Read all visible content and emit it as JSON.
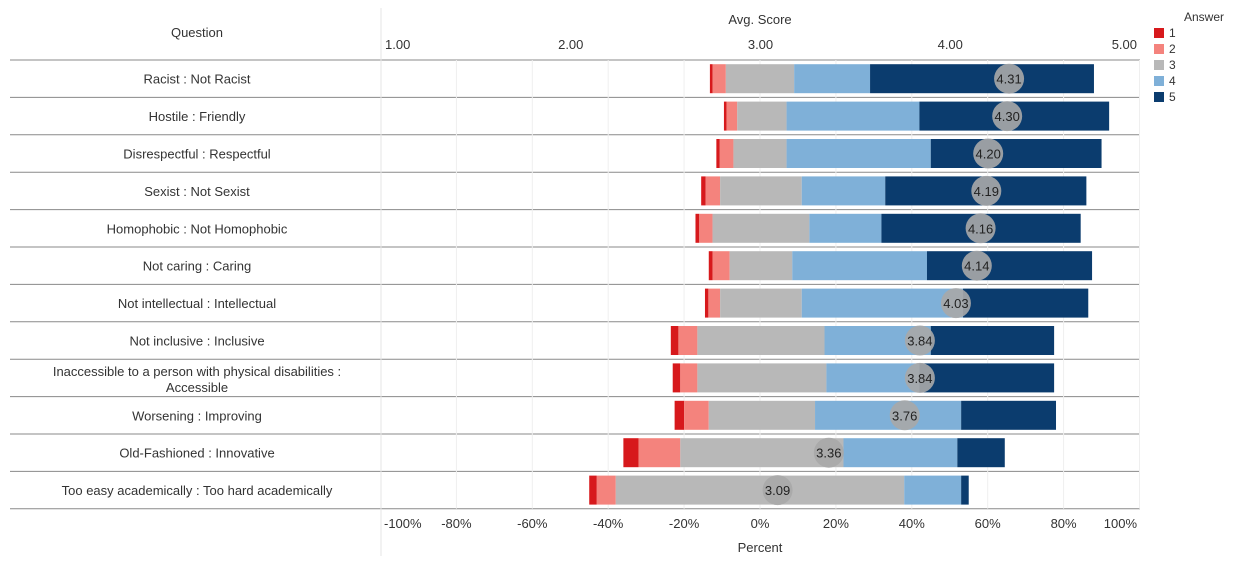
{
  "chart_data": {
    "type": "bar",
    "subtype": "diverging-stacked-bar-with-score-markers",
    "question_header": "Question",
    "avg_axis": {
      "label": "Avg. Score",
      "range": [
        1.0,
        5.0
      ],
      "ticks": [
        "1.00",
        "2.00",
        "3.00",
        "4.00",
        "5.00"
      ]
    },
    "percent_axis": {
      "label": "Percent",
      "range": [
        -100,
        100
      ],
      "ticks": [
        "-100%",
        "-80%",
        "-60%",
        "-40%",
        "-20%",
        "0%",
        "20%",
        "40%",
        "60%",
        "80%",
        "100%"
      ]
    },
    "legend": {
      "title": "Answer",
      "entries": [
        "1",
        "2",
        "3",
        "4",
        "5"
      ],
      "placement": "top-right"
    },
    "colors": {
      "1": "#d7191c",
      "2": "#f4837d",
      "3": "#b8b8b8",
      "4": "#7fb0d8",
      "5": "#0b3c6e",
      "marker": "#a8a8a8"
    },
    "grid": true,
    "rows": [
      {
        "question": "Racist : Not Racist",
        "score": 4.31,
        "segments": [
          [
            -13.2,
            -12.5
          ],
          [
            -12.5,
            -9
          ],
          [
            -9,
            9
          ],
          [
            9,
            29
          ],
          [
            29,
            88
          ]
        ],
        "label": "4.31"
      },
      {
        "question": "Hostile : Friendly",
        "score": 4.3,
        "segments": [
          [
            -9.5,
            -8.8
          ],
          [
            -8.8,
            -6
          ],
          [
            -6,
            7
          ],
          [
            7,
            42
          ],
          [
            42,
            92
          ]
        ],
        "label": "4.30"
      },
      {
        "question": "Disrespectful : Respectful",
        "score": 4.2,
        "segments": [
          [
            -11.5,
            -10.6
          ],
          [
            -10.6,
            -7
          ],
          [
            -7,
            7
          ],
          [
            7,
            45
          ],
          [
            45,
            90
          ]
        ],
        "label": "4.20"
      },
      {
        "question": "Sexist : Not Sexist",
        "score": 4.19,
        "segments": [
          [
            -15.5,
            -14.3
          ],
          [
            -14.3,
            -10.5
          ],
          [
            -10.5,
            11
          ],
          [
            11,
            33
          ],
          [
            33,
            86
          ]
        ],
        "label": "4.19"
      },
      {
        "question": "Homophobic : Not Homophobic",
        "score": 4.16,
        "segments": [
          [
            -17,
            -16
          ],
          [
            -16,
            -12.5
          ],
          [
            -12.5,
            13
          ],
          [
            13,
            32
          ],
          [
            32,
            84.5
          ]
        ],
        "label": "4.16"
      },
      {
        "question": "Not caring : Caring",
        "score": 4.14,
        "segments": [
          [
            -13.5,
            -12.5
          ],
          [
            -12.5,
            -8
          ],
          [
            -8,
            8.5
          ],
          [
            8.5,
            44
          ],
          [
            44,
            87.5
          ]
        ],
        "label": "4.14"
      },
      {
        "question": "Not intellectual : Intellectual",
        "score": 4.03,
        "segments": [
          [
            -14.5,
            -13.6
          ],
          [
            -13.6,
            -10.5
          ],
          [
            -10.5,
            11
          ],
          [
            11,
            53.5
          ],
          [
            53.5,
            86.5
          ]
        ],
        "label": "4.03"
      },
      {
        "question": "Not inclusive : Inclusive",
        "score": 3.84,
        "segments": [
          [
            -23.5,
            -21.5
          ],
          [
            -21.5,
            -16.5
          ],
          [
            -16.5,
            17
          ],
          [
            17,
            45
          ],
          [
            45,
            77.5
          ]
        ],
        "label": "3.84"
      },
      {
        "question": "Inaccessible to a person with physical disabilities : Accessible",
        "question_lines": [
          "Inaccessible to a person with physical disabilities :",
          "Accessible"
        ],
        "score": 3.84,
        "segments": [
          [
            -23,
            -21
          ],
          [
            -21,
            -16.5
          ],
          [
            -16.5,
            17.5
          ],
          [
            17.5,
            42
          ],
          [
            42,
            77.5
          ]
        ],
        "label": "3.84"
      },
      {
        "question": "Worsening : Improving",
        "score": 3.76,
        "segments": [
          [
            -22.5,
            -20
          ],
          [
            -20,
            -13.5
          ],
          [
            -13.5,
            14.5
          ],
          [
            14.5,
            53
          ],
          [
            53,
            78
          ]
        ],
        "label": "3.76"
      },
      {
        "question": "Old-Fashioned : Innovative",
        "score": 3.36,
        "segments": [
          [
            -36,
            -32
          ],
          [
            -32,
            -21
          ],
          [
            -21,
            22
          ],
          [
            22,
            52
          ],
          [
            52,
            64.5
          ]
        ],
        "label": "3.36"
      },
      {
        "question": "Too easy academically : Too hard academically",
        "score": 3.09,
        "segments": [
          [
            -45,
            -43
          ],
          [
            -43,
            -38
          ],
          [
            -38,
            38
          ],
          [
            38,
            53
          ],
          [
            53,
            55
          ]
        ],
        "label": "3.09"
      }
    ]
  }
}
